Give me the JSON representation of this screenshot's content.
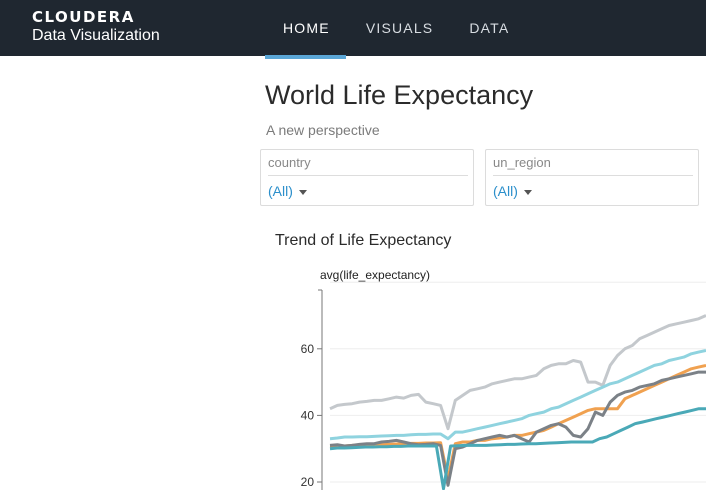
{
  "brand": {
    "logo": "CLOUDERA",
    "product": "Data Visualization"
  },
  "nav": {
    "items": [
      "HOME",
      "VISUALS",
      "DATA"
    ],
    "active": "HOME"
  },
  "page": {
    "title": "World Life Expectancy",
    "subtitle": "A new perspective"
  },
  "filters": [
    {
      "label": "country",
      "value": "(All)"
    },
    {
      "label": "un_region",
      "value": "(All)"
    }
  ],
  "chart_data": {
    "type": "line",
    "title": "Trend of Life Expectancy",
    "ylabel": "avg(life_expectancy)",
    "xlabel": "",
    "yticks": [
      20,
      40,
      60
    ],
    "ylim": [
      18,
      76
    ],
    "grid": true,
    "series": [
      {
        "color": "#c4c8cc",
        "values": [
          42,
          43,
          43.3,
          43.5,
          44,
          44.2,
          44.5,
          44.5,
          45,
          45.5,
          45.2,
          46,
          46.3,
          44,
          43.5,
          43,
          36,
          44.5,
          46,
          47.5,
          48,
          48.5,
          49.5,
          50,
          50.5,
          51,
          51,
          51.5,
          52,
          54,
          55,
          55.5,
          55.5,
          56.5,
          56,
          50,
          50,
          49,
          55,
          58,
          60,
          61,
          63,
          64,
          65,
          66,
          67,
          67.5,
          68,
          68.5,
          69,
          70
        ]
      },
      {
        "color": "#8fd3df",
        "values": [
          33,
          33.2,
          33.5,
          33.5,
          33.6,
          33.6,
          33.7,
          33.8,
          33.9,
          34,
          34,
          34.2,
          34.3,
          34.3,
          34.4,
          34.4,
          33,
          35,
          35,
          35.5,
          36,
          36.5,
          37,
          37.5,
          38,
          38.5,
          39,
          40,
          40.5,
          41,
          42,
          42.5,
          43.5,
          44.5,
          45.5,
          46.5,
          47.5,
          48.5,
          49.5,
          50,
          51,
          52,
          53,
          54,
          55,
          55.5,
          56.5,
          57,
          57.5,
          58.5,
          59,
          59.5
        ]
      },
      {
        "color": "#f0a150",
        "values": [
          30.5,
          30.6,
          30.8,
          31,
          31,
          31,
          31.1,
          31.2,
          31.3,
          31.4,
          31.5,
          31.6,
          31.6,
          31.7,
          31.7,
          31.8,
          21,
          31.5,
          32,
          32,
          32.5,
          32.5,
          33,
          33.2,
          33.5,
          34,
          34,
          34.5,
          35,
          35.5,
          36.5,
          37.5,
          38.5,
          39.5,
          40.5,
          41.5,
          42,
          42,
          42,
          42,
          45,
          46,
          47,
          48,
          49,
          50,
          51,
          52,
          53,
          54,
          54.5,
          55
        ]
      },
      {
        "color": "#7b8187",
        "values": [
          31,
          31.2,
          30.8,
          31,
          31.3,
          31.5,
          31.5,
          32,
          32.2,
          32.5,
          32,
          31.5,
          31.2,
          31.3,
          31.5,
          31,
          19,
          30,
          30.5,
          31.5,
          32.5,
          33,
          33.5,
          34,
          33.5,
          34,
          33,
          32,
          35,
          36,
          37,
          37.5,
          36.5,
          34,
          33.5,
          36,
          41,
          40,
          44,
          46,
          47,
          47.5,
          48.5,
          49,
          49.5,
          50.5,
          51,
          51.5,
          52,
          52.5,
          53,
          53
        ]
      },
      {
        "color": "#4aa9b7",
        "values": [
          30,
          30.2,
          30.2,
          30.3,
          30.4,
          30.5,
          30.5,
          30.6,
          30.6,
          30.7,
          30.7,
          30.8,
          30.8,
          30.8,
          30.8,
          30.8,
          18,
          30.8,
          30.9,
          31,
          31,
          31,
          31,
          31.1,
          31.2,
          31.3,
          31.3,
          31.4,
          31.5,
          31.5,
          31.6,
          31.7,
          31.8,
          31.9,
          32,
          32,
          32,
          32,
          33,
          33.5,
          34.5,
          35.5,
          36.5,
          37.5,
          38,
          38.5,
          39,
          39.5,
          40,
          40.5,
          41,
          41.5,
          42,
          42
        ]
      }
    ]
  }
}
